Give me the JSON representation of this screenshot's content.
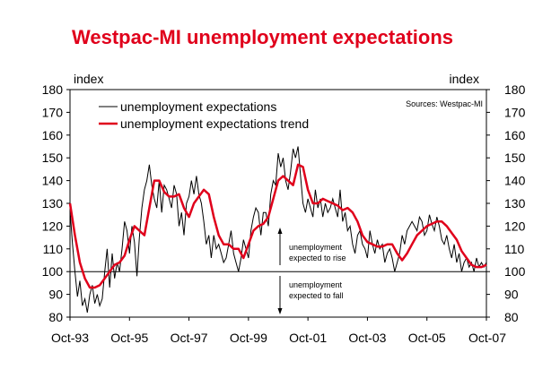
{
  "chart_data": {
    "type": "line",
    "title": "Westpac-MI unemployment expectations",
    "title_color": "#e0001b",
    "ylabel_left": "index",
    "ylabel_right": "index",
    "ylim": [
      80,
      180
    ],
    "yticks": [
      80,
      90,
      100,
      110,
      120,
      130,
      140,
      150,
      160,
      170,
      180
    ],
    "xlim": [
      0,
      168
    ],
    "xticks": [
      {
        "label": "Oct-93",
        "x": 0
      },
      {
        "label": "Oct-95",
        "x": 24
      },
      {
        "label": "Oct-97",
        "x": 48
      },
      {
        "label": "Oct-99",
        "x": 72
      },
      {
        "label": "Oct-01",
        "x": 96
      },
      {
        "label": "Oct-03",
        "x": 120
      },
      {
        "label": "Oct-05",
        "x": 144
      },
      {
        "label": "Oct-07",
        "x": 168
      }
    ],
    "x_units": "months since Oct-93",
    "reference_line": 100,
    "source": "Sources: Westpac-MI",
    "annotations": {
      "rise": [
        "unemployment",
        "expected to rise"
      ],
      "fall": [
        "unemployment",
        "expected to fall"
      ]
    },
    "series": [
      {
        "name": "unemployment expectations",
        "color": "#000000",
        "x": [
          0,
          1,
          2,
          3,
          4,
          5,
          6,
          7,
          8,
          9,
          10,
          11,
          12,
          13,
          14,
          15,
          16,
          17,
          18,
          19,
          20,
          21,
          22,
          23,
          24,
          25,
          26,
          27,
          28,
          29,
          30,
          31,
          32,
          33,
          34,
          35,
          36,
          37,
          38,
          39,
          40,
          41,
          42,
          43,
          44,
          45,
          46,
          47,
          48,
          49,
          50,
          51,
          52,
          53,
          54,
          55,
          56,
          57,
          58,
          59,
          60,
          61,
          62,
          63,
          64,
          65,
          66,
          67,
          68,
          69,
          70,
          71,
          72,
          73,
          74,
          75,
          76,
          77,
          78,
          79,
          80,
          81,
          82,
          83,
          84,
          85,
          86,
          87,
          88,
          89,
          90,
          91,
          92,
          93,
          94,
          95,
          96,
          97,
          98,
          99,
          100,
          101,
          102,
          103,
          104,
          105,
          106,
          107,
          108,
          109,
          110,
          111,
          112,
          113,
          114,
          115,
          116,
          117,
          118,
          119,
          120,
          121,
          122,
          123,
          124,
          125,
          126,
          127,
          128,
          129,
          130,
          131,
          132,
          133,
          134,
          135,
          136,
          137,
          138,
          139,
          140,
          141,
          142,
          143,
          144,
          145,
          146,
          147,
          148,
          149,
          150,
          151,
          152,
          153,
          154,
          155,
          156,
          157,
          158,
          159,
          160,
          161,
          162,
          163,
          164,
          165,
          166,
          167,
          168
        ],
        "values": [
          127,
          112,
          100,
          89,
          96,
          85,
          88,
          82,
          90,
          94,
          86,
          90,
          85,
          88,
          100,
          110,
          93,
          108,
          97,
          104,
          100,
          110,
          122,
          118,
          108,
          120,
          113,
          98,
          115,
          128,
          136,
          140,
          147,
          138,
          132,
          128,
          140,
          126,
          138,
          136,
          132,
          128,
          138,
          134,
          120,
          126,
          116,
          130,
          133,
          140,
          134,
          142,
          134,
          130,
          122,
          112,
          116,
          106,
          116,
          110,
          112,
          108,
          104,
          106,
          112,
          118,
          108,
          104,
          100,
          106,
          114,
          110,
          106,
          118,
          124,
          128,
          126,
          116,
          126,
          126,
          120,
          134,
          140,
          138,
          152,
          146,
          150,
          140,
          136,
          144,
          154,
          150,
          155,
          142,
          130,
          126,
          132,
          128,
          124,
          136,
          128,
          132,
          124,
          130,
          126,
          128,
          132,
          128,
          124,
          136,
          122,
          126,
          118,
          120,
          112,
          108,
          116,
          118,
          112,
          110,
          106,
          118,
          112,
          108,
          114,
          110,
          112,
          104,
          108,
          110,
          106,
          100,
          104,
          108,
          116,
          112,
          118,
          120,
          122,
          120,
          118,
          124,
          122,
          116,
          118,
          125,
          121,
          118,
          124,
          120,
          114,
          112,
          116,
          110,
          106,
          112,
          104,
          108,
          100,
          104,
          106,
          102,
          104,
          100,
          106,
          102,
          104,
          102,
          104
        ]
      },
      {
        "name": "unemployment expectations trend",
        "color": "#e0001b",
        "x": [
          0,
          2,
          4,
          6,
          8,
          10,
          12,
          14,
          16,
          18,
          20,
          22,
          24,
          26,
          28,
          30,
          32,
          34,
          36,
          38,
          40,
          42,
          44,
          46,
          48,
          50,
          52,
          54,
          56,
          58,
          60,
          62,
          64,
          66,
          68,
          70,
          72,
          74,
          76,
          78,
          80,
          82,
          84,
          86,
          88,
          90,
          92,
          94,
          96,
          98,
          100,
          102,
          104,
          106,
          108,
          110,
          112,
          114,
          116,
          118,
          120,
          122,
          124,
          126,
          128,
          130,
          132,
          134,
          136,
          138,
          140,
          142,
          144,
          146,
          148,
          150,
          152,
          154,
          156,
          158,
          160,
          162,
          164,
          166,
          168
        ],
        "values": [
          130,
          116,
          104,
          97,
          93,
          93,
          94,
          97,
          100,
          103,
          104,
          107,
          114,
          120,
          118,
          116,
          128,
          140,
          140,
          135,
          133,
          133,
          134,
          128,
          124,
          130,
          133,
          136,
          134,
          124,
          116,
          112,
          112,
          110,
          110,
          106,
          112,
          118,
          120,
          121,
          124,
          132,
          140,
          142,
          140,
          138,
          147,
          146,
          136,
          130,
          130,
          132,
          131,
          130,
          129,
          127,
          128,
          126,
          122,
          116,
          113,
          112,
          111,
          111,
          112,
          112,
          108,
          105,
          108,
          112,
          116,
          118,
          120,
          121,
          122,
          122,
          120,
          117,
          114,
          109,
          106,
          103,
          102,
          102,
          103
        ]
      }
    ]
  }
}
